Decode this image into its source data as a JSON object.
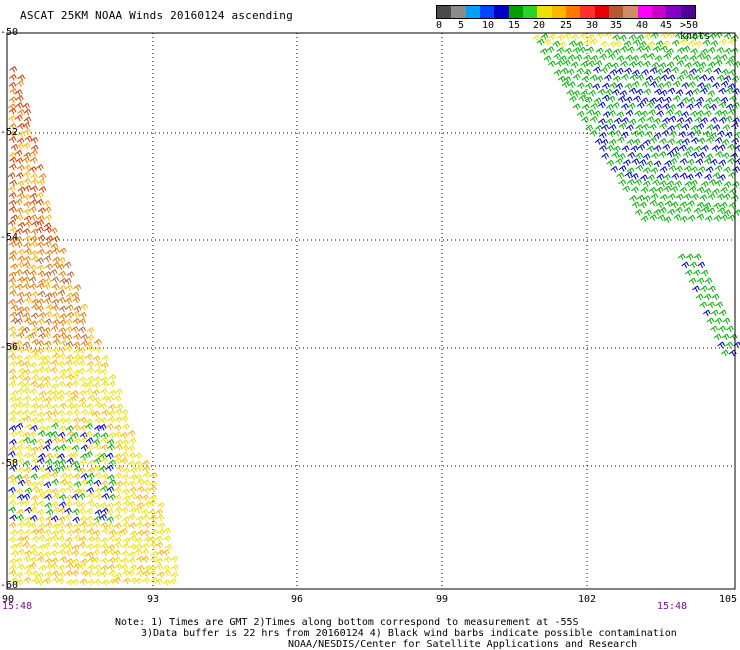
{
  "title": "ASCAT 25KM NOAA Winds 20160124 ascending",
  "legend": {
    "labels": [
      "0",
      "5",
      "10",
      "15",
      "20",
      "25",
      "30",
      "35",
      "40",
      "45",
      ">50 knots"
    ],
    "colors": [
      "#4a4a4a",
      "#8c8c8c",
      "#00a0ff",
      "#0044ff",
      "#0000c8",
      "#00a000",
      "#28d428",
      "#f0e000",
      "#ffb400",
      "#ff7800",
      "#ff3030",
      "#e60000",
      "#b45a32",
      "#d28c64",
      "#ff00ff",
      "#c800c8",
      "#8200c8",
      "#500096"
    ]
  },
  "map": {
    "lat_labels": [
      "-50",
      "-52",
      "-54",
      "-56",
      "-58",
      "-60"
    ],
    "lon_labels": [
      "90",
      "93",
      "96",
      "99",
      "102",
      "105"
    ],
    "time_labels": [
      "15:48",
      "15:48"
    ]
  },
  "notes": {
    "line1": "Note: 1) Times are GMT 2)Times along bottom correspond to measurement at -55S",
    "line2": "3)Data buffer is 22 hrs from 20160124 4) Black wind barbs indicate possible contamination",
    "line3": "NOAA/NESDIS/Center for Satellite Applications and Research"
  },
  "wind_colors": {
    "blue": "#0000c8",
    "green": "#00b400",
    "yellow": "#f0e000",
    "orange": "#ffb400",
    "dark_orange": "#e67800",
    "red": "#d23c00",
    "brown": "#b4643c"
  }
}
